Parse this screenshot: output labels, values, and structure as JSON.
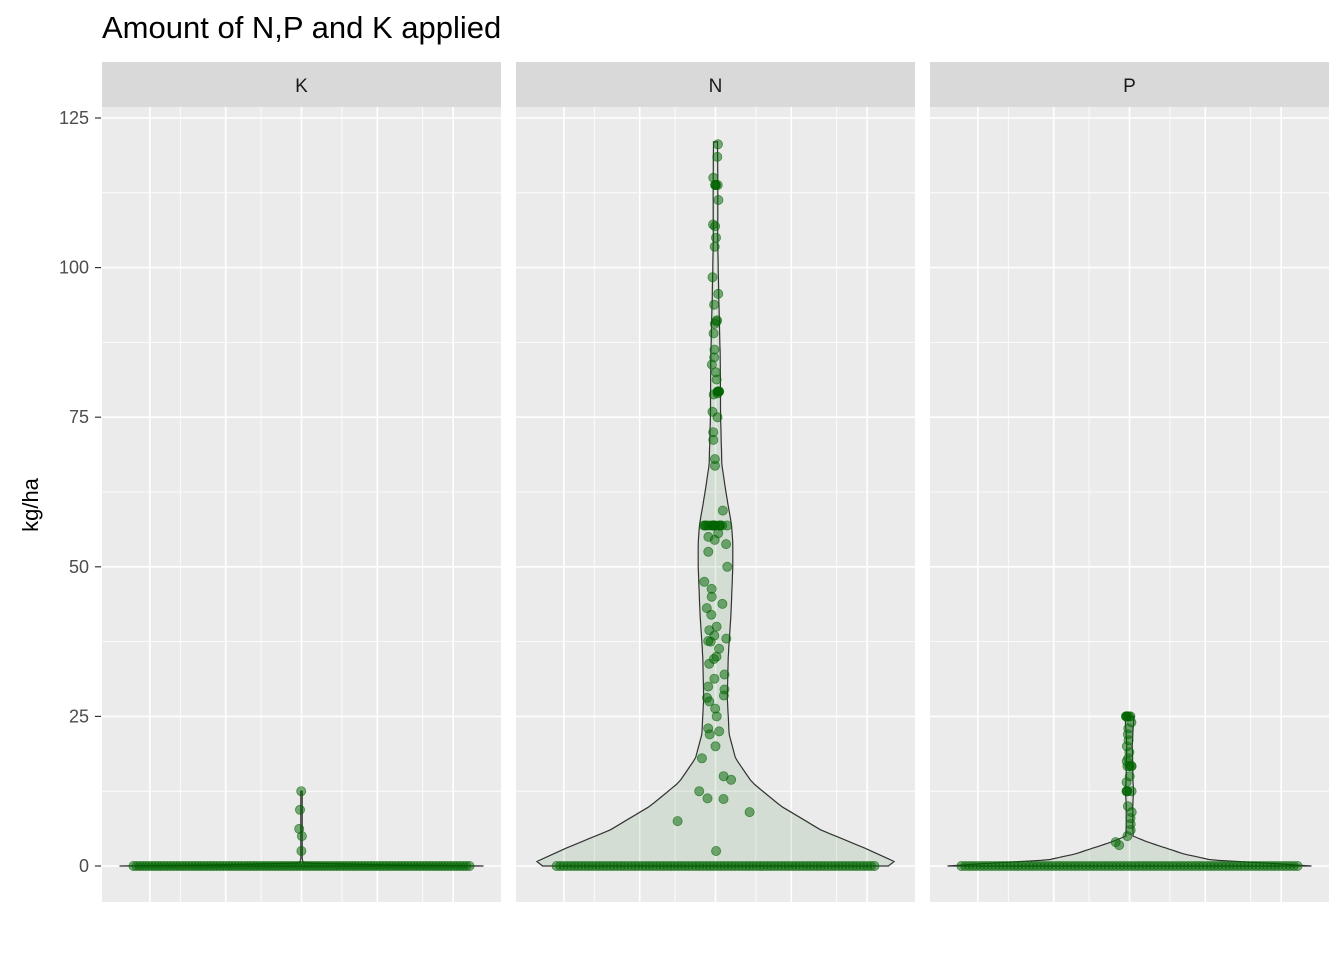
{
  "chart_data": {
    "type": "violin",
    "title": "Amount of N,P and K applied",
    "xlabel": "",
    "ylabel": "kg/ha",
    "ylim": [
      -6,
      125
    ],
    "yticks": [
      0,
      25,
      50,
      75,
      100,
      125
    ],
    "grid": true,
    "point_color": "#006400",
    "violin_fill": "#006400",
    "violin_outline": "#333333",
    "panel_bg": "#ebebeb",
    "strip_bg": "#d9d9d9",
    "facets": [
      {
        "label": "K",
        "violin": {
          "max": 12.5,
          "width_profile": [
            [
              0,
              1.0
            ],
            [
              0.2,
              0.45
            ],
            [
              0.5,
              0.01
            ],
            [
              1.2,
              0.004
            ],
            [
              12.5,
              0.004
            ]
          ]
        },
        "points": {
          "zero_count": 110,
          "values": [
            2.5,
            5,
            6.2,
            9.4,
            12.5
          ]
        }
      },
      {
        "label": "N",
        "violin": {
          "max": 121,
          "width_profile": [
            [
              0,
              0.95
            ],
            [
              0.5,
              1.0
            ],
            [
              3,
              0.82
            ],
            [
              6,
              0.58
            ],
            [
              10,
              0.36
            ],
            [
              14,
              0.2
            ],
            [
              18,
              0.11
            ],
            [
              22,
              0.075
            ],
            [
              28,
              0.065
            ],
            [
              35,
              0.07
            ],
            [
              42,
              0.085
            ],
            [
              50,
              0.095
            ],
            [
              54,
              0.095
            ],
            [
              57,
              0.088
            ],
            [
              62,
              0.06
            ],
            [
              67,
              0.035
            ],
            [
              75,
              0.028
            ],
            [
              85,
              0.026
            ],
            [
              95,
              0.018
            ],
            [
              105,
              0.012
            ],
            [
              112,
              0.013
            ],
            [
              118,
              0.012
            ],
            [
              121,
              0.011
            ]
          ]
        },
        "points": {
          "zero_count": 90,
          "values": [
            2.5,
            7.5,
            9,
            11.2,
            11.3,
            12.5,
            14.4,
            15,
            18,
            20,
            22,
            22.5,
            23,
            25,
            26.3,
            27.5,
            28.1,
            28.5,
            29.5,
            30,
            31.3,
            32,
            33.8,
            34.6,
            35,
            36.3,
            37.5,
            37.6,
            38,
            38.5,
            39.4,
            40,
            42,
            43.1,
            43.8,
            45,
            46.3,
            47.5,
            50,
            52.5,
            53.8,
            54.5,
            55,
            55.6,
            56.9,
            56.9,
            56.9,
            56.9,
            56.9,
            56.9,
            56.9,
            56.9,
            56.9,
            56.9,
            56.9,
            56.9,
            56.9,
            56.9,
            56.9,
            56.9,
            59.4,
            66.9,
            68,
            71.2,
            72.5,
            75,
            75.9,
            78.8,
            79,
            79.3,
            79.3,
            79.3,
            79.3,
            79.3,
            81.3,
            82.5,
            83.8,
            85,
            86.3,
            89,
            90.6,
            91,
            91.2,
            93.8,
            95.6,
            98.4,
            103.5,
            105,
            106.9,
            107.2,
            111.3,
            113.8,
            113.8,
            113.8,
            113.8,
            115,
            118.5,
            120.6
          ]
        }
      },
      {
        "label": "P",
        "violin": {
          "max": 25,
          "width_profile": [
            [
              0,
              1.0
            ],
            [
              0.5,
              0.75
            ],
            [
              1,
              0.45
            ],
            [
              2,
              0.3
            ],
            [
              3,
              0.2
            ],
            [
              4,
              0.1
            ],
            [
              5,
              0.02
            ],
            [
              7,
              0.018
            ],
            [
              10,
              0.018
            ],
            [
              12.5,
              0.022
            ],
            [
              15,
              0.018
            ],
            [
              17,
              0.018
            ],
            [
              20,
              0.015
            ],
            [
              23,
              0.02
            ],
            [
              25,
              0.025
            ]
          ]
        },
        "points": {
          "zero_count": 90,
          "values": [
            3.5,
            4,
            5,
            6,
            7,
            8,
            9,
            10,
            12.5,
            12.5,
            12.5,
            12.5,
            14,
            15,
            16.7,
            16.7,
            16.7,
            16.7,
            17.5,
            18,
            19,
            20,
            21,
            22,
            23,
            24,
            25,
            25,
            25,
            25,
            25,
            25
          ]
        }
      }
    ]
  }
}
